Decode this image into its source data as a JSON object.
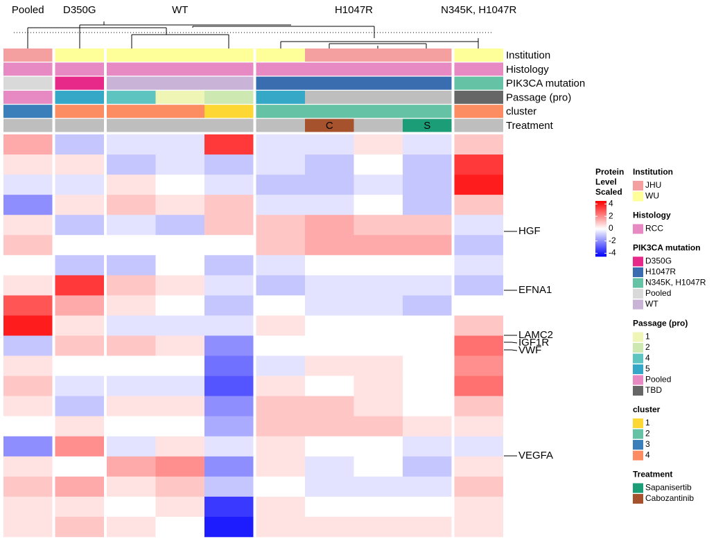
{
  "chart_data": {
    "type": "heatmap",
    "groups": [
      {
        "name": "Pooled",
        "columns": 1
      },
      {
        "name": "D350G",
        "columns": 1
      },
      {
        "name": "WT",
        "columns": 3
      },
      {
        "name": "H1047R",
        "columns": 4
      },
      {
        "name": "N345K, H1047R",
        "columns": 1
      }
    ],
    "values": [
      [
        1.5,
        0.5,
        -0.5,
        -2,
        0.5,
        1,
        0,
        0.5,
        3,
        4,
        -1,
        0.5,
        1,
        0.5,
        0,
        -2,
        0.5,
        1,
        0.5,
        0.5
      ],
      [
        -1,
        0.5,
        -0.5,
        0.5,
        -1,
        0,
        -1,
        3.5,
        1.5,
        0.5,
        1,
        0,
        -0.5,
        -1,
        0.5,
        2,
        0,
        1.5,
        0.5,
        1
      ],
      [
        -0.5,
        -1,
        0.5,
        1,
        -0.5,
        0,
        -1,
        1,
        0.5,
        -0.5,
        1,
        0,
        -0.5,
        0.5,
        0,
        -0.5,
        1.5,
        0.5,
        0,
        0.5
      ],
      [
        -0.5,
        -0.5,
        0,
        0.5,
        -1,
        0,
        0,
        0.5,
        0,
        -0.5,
        0.5,
        0,
        -0.5,
        0.5,
        0,
        0.5,
        2,
        1,
        0.5,
        0
      ],
      [
        3.5,
        -1,
        -0.5,
        1,
        1,
        0,
        -1,
        -0.5,
        -1,
        -0.5,
        -2,
        -2.5,
        -3,
        -2,
        -1.5,
        -0.5,
        -2,
        -1,
        -3.5,
        -4
      ],
      [
        -0.5,
        -0.5,
        -1,
        -0.5,
        1,
        1,
        -0.5,
        -1,
        0,
        0.5,
        0,
        -0.5,
        0.5,
        1,
        1,
        0.5,
        0.5,
        0,
        0.5,
        0.5
      ],
      [
        -0.5,
        -1,
        -1,
        -0.5,
        1.5,
        1.5,
        0,
        -0.5,
        -0.5,
        0,
        0,
        0.5,
        0,
        1,
        1,
        0,
        -0.5,
        -0.5,
        0,
        0.5
      ],
      [
        0.5,
        0,
        -0.5,
        0,
        1,
        1.5,
        0,
        -0.5,
        -0.5,
        0,
        0,
        0.5,
        0.5,
        0.5,
        1,
        0,
        0,
        -0.5,
        0,
        0.5
      ],
      [
        -0.5,
        -1,
        -1,
        -1,
        1,
        1.5,
        0,
        -0.5,
        -1,
        0,
        0,
        0,
        0,
        0,
        0.5,
        -0.5,
        -1,
        -0.5,
        0,
        0.5
      ],
      [
        1,
        3.5,
        4,
        1,
        -0.5,
        -1,
        -0.5,
        -1,
        0,
        1,
        2.5,
        2,
        2.5,
        1,
        0.5,
        -0.5,
        0.5,
        1,
        0.5,
        0.5
      ]
    ],
    "annotations": [
      {
        "name": "Institution",
        "values": [
          "JHU",
          "WU",
          "WU",
          "WU",
          "WU",
          "WU",
          "JHU",
          "JHU",
          "JHU",
          "WU"
        ]
      },
      {
        "name": "Histology",
        "values": [
          "RCC",
          "RCC",
          "RCC",
          "RCC",
          "RCC",
          "RCC",
          "RCC",
          "RCC",
          "RCC",
          "RCC"
        ]
      },
      {
        "name": "PIK3CA mutation",
        "values": [
          "Pooled",
          "D350G",
          "WT",
          "WT",
          "WT",
          "H1047R",
          "H1047R",
          "H1047R",
          "H1047R",
          "N345K, H1047R"
        ]
      },
      {
        "name": "Passage (pro)",
        "values": [
          "Pooled",
          "5",
          "4",
          "1",
          "2",
          "5",
          null,
          null,
          null,
          "TBD"
        ]
      },
      {
        "name": "cluster",
        "values": [
          "3",
          "4",
          "4",
          "4",
          "1",
          "2",
          "2",
          "2",
          "2",
          "4"
        ]
      },
      {
        "name": "Treatment",
        "values": [
          null,
          null,
          null,
          null,
          null,
          null,
          "Cabozantinib",
          null,
          "Sapanisertib",
          null
        ]
      }
    ],
    "treatment_labels": [
      null,
      null,
      null,
      null,
      null,
      null,
      "C",
      null,
      "S",
      null
    ],
    "row_labels": [
      "HGF",
      "EFNA1",
      "LAMC2",
      "IGF1R",
      "VWF",
      "VEGFA"
    ],
    "colorbar": {
      "title": [
        "Protein",
        "Level",
        "Scaled"
      ],
      "lim": [
        -4.5,
        4.5
      ],
      "ticks": [
        4,
        2,
        0,
        -2,
        -4
      ],
      "colors": [
        "#0000ff",
        "#ffffff",
        "#ff0000"
      ]
    },
    "legend": [
      {
        "title": "Institution",
        "items": [
          {
            "name": "JHU",
            "color": "#f4a0a0"
          },
          {
            "name": "WU",
            "color": "#ffff99"
          }
        ]
      },
      {
        "title": "Histology",
        "items": [
          {
            "name": "RCC",
            "color": "#e78ac3"
          }
        ]
      },
      {
        "title": "PIK3CA mutation",
        "items": [
          {
            "name": "D350G",
            "color": "#e7298a"
          },
          {
            "name": "H1047R",
            "color": "#3a6db0"
          },
          {
            "name": "N345K, H1047R",
            "color": "#66c2a5"
          },
          {
            "name": "Pooled",
            "color": "#d9d9d9"
          },
          {
            "name": "WT",
            "color": "#c9b4d8"
          }
        ]
      },
      {
        "title": "Passage (pro)",
        "items": [
          {
            "name": "1",
            "color": "#eef5b5"
          },
          {
            "name": "2",
            "color": "#cde8b0"
          },
          {
            "name": "4",
            "color": "#5ec4c0"
          },
          {
            "name": "5",
            "color": "#35a8c8"
          },
          {
            "name": "Pooled",
            "color": "#e78ac3"
          },
          {
            "name": "TBD",
            "color": "#666666"
          }
        ]
      },
      {
        "title": "cluster",
        "items": [
          {
            "name": "1",
            "color": "#fdd835"
          },
          {
            "name": "2",
            "color": "#66c2a5"
          },
          {
            "name": "3",
            "color": "#3a7fba"
          },
          {
            "name": "4",
            "color": "#fc8d62"
          }
        ]
      },
      {
        "title": "Treatment",
        "items": [
          {
            "name": "Sapanisertib",
            "color": "#1b9e77"
          },
          {
            "name": "Cabozantinib",
            "color": "#a6522c"
          }
        ]
      }
    ]
  }
}
